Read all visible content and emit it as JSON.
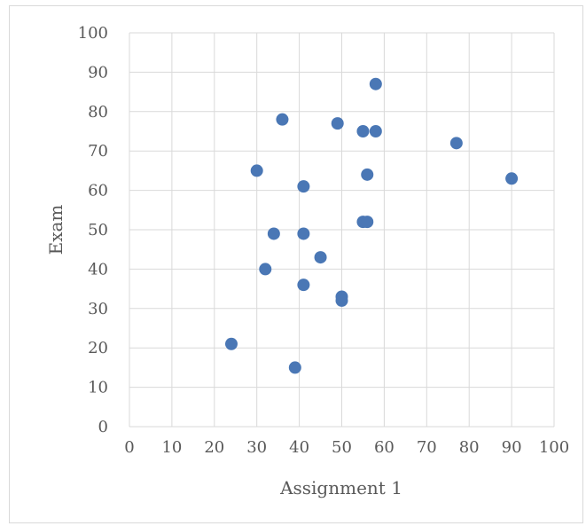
{
  "chart_data": {
    "type": "scatter",
    "title": "",
    "xlabel": "Assignment 1",
    "ylabel": "Exam",
    "xlim": [
      0,
      100
    ],
    "ylim": [
      0,
      100
    ],
    "x_ticks": [
      0,
      10,
      20,
      30,
      40,
      50,
      60,
      70,
      80,
      90,
      100
    ],
    "y_ticks": [
      0,
      10,
      20,
      30,
      40,
      50,
      60,
      70,
      80,
      90,
      100
    ],
    "grid": true,
    "legend": "none",
    "color": "#4a77b5",
    "series": [
      {
        "points": [
          {
            "x": 24,
            "y": 21
          },
          {
            "x": 30,
            "y": 65
          },
          {
            "x": 32,
            "y": 40
          },
          {
            "x": 34,
            "y": 49
          },
          {
            "x": 36,
            "y": 78
          },
          {
            "x": 39,
            "y": 15
          },
          {
            "x": 41,
            "y": 61
          },
          {
            "x": 41,
            "y": 49
          },
          {
            "x": 41,
            "y": 36
          },
          {
            "x": 45,
            "y": 43
          },
          {
            "x": 49,
            "y": 77
          },
          {
            "x": 50,
            "y": 33
          },
          {
            "x": 50,
            "y": 32
          },
          {
            "x": 55,
            "y": 75
          },
          {
            "x": 55,
            "y": 52
          },
          {
            "x": 56,
            "y": 52
          },
          {
            "x": 56,
            "y": 64
          },
          {
            "x": 58,
            "y": 87
          },
          {
            "x": 58,
            "y": 75
          },
          {
            "x": 77,
            "y": 72
          },
          {
            "x": 90,
            "y": 63
          }
        ]
      }
    ]
  }
}
